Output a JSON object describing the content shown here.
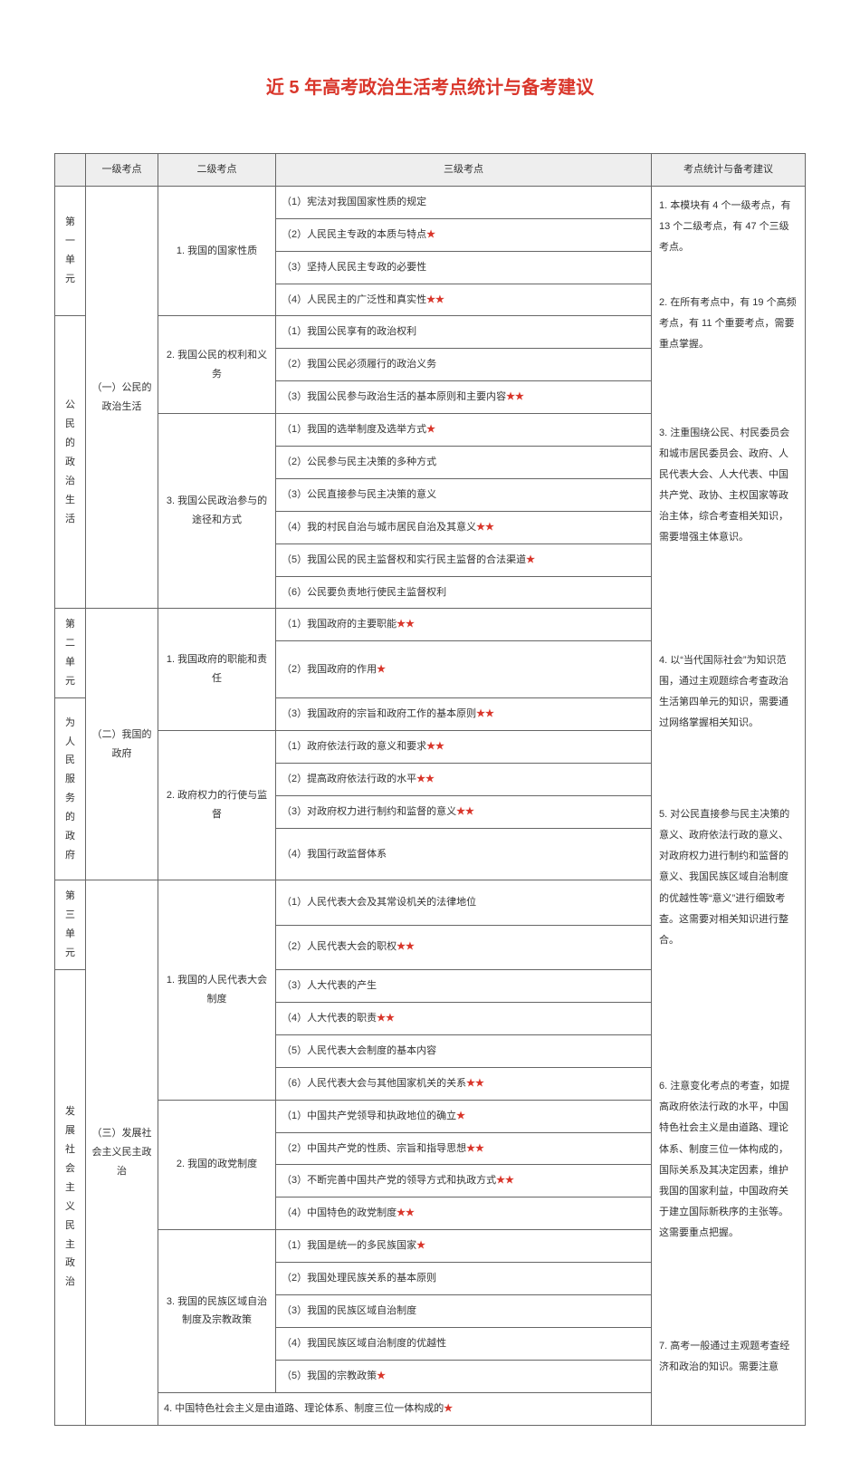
{
  "title": "近 5 年高考政治生活考点统计与备考建议",
  "headers": {
    "col0": "",
    "col1": "一级考点",
    "col2": "二级考点",
    "col3": "三级考点",
    "col4": "考点统计与备考建议"
  },
  "star": "★",
  "side": {
    "u1": "第一单元",
    "u2": "第二单元",
    "u3": "第三单元",
    "s1": "公民的政治生活",
    "s2": "为人民服务的政府",
    "s3": "发展社会主义民主政治"
  },
  "l1": {
    "a": "（一）公民的政治生活",
    "b": "（二）我国的政府",
    "c": "（三）发展社会主义民主政治"
  },
  "l2": {
    "a1": "1. 我国的国家性质",
    "a2": "2. 我国公民的权利和义务",
    "a3": "3. 我国公民政治参与的途径和方式",
    "b1": "1. 我国政府的职能和责任",
    "b2": "2. 政府权力的行使与监督",
    "c1": "1. 我国的人民代表大会制度",
    "c2": "2. 我国的政党制度",
    "c3": "3. 我国的民族区域自治制度及宗教政策",
    "c4": "4. 中国特色社会主义是由道路、理论体系、制度三位一体构成的"
  },
  "l3": {
    "a1_1": "（1）宪法对我国国家性质的规定",
    "a1_2": "（2）人民民主专政的本质与特点",
    "a1_3": "（3）坚持人民民主专政的必要性",
    "a1_4": "（4）人民民主的广泛性和真实性",
    "a2_1": "（1）我国公民享有的政治权利",
    "a2_2": "（2）我国公民必须履行的政治义务",
    "a2_3": "（3）我国公民参与政治生活的基本原则和主要内容",
    "a3_1": "（1）我国的选举制度及选举方式",
    "a3_2": "（2）公民参与民主决策的多种方式",
    "a3_3": "（3）公民直接参与民主决策的意义",
    "a3_4": "（4）我的村民自治与城市居民自治及其意义",
    "a3_5": "（5）我国公民的民主监督权和实行民主监督的合法渠道",
    "a3_6": "（6）公民要负责地行使民主监督权利",
    "b1_1": "（1）我国政府的主要职能",
    "b1_2": "（2）我国政府的作用",
    "b1_3": "（3）我国政府的宗旨和政府工作的基本原则",
    "b2_1": "（1）政府依法行政的意义和要求",
    "b2_2": "（2）提高政府依法行政的水平",
    "b2_3": "（3）对政府权力进行制约和监督的意义",
    "b2_4": "（4）我国行政监督体系",
    "c1_1": "（1）人民代表大会及其常设机关的法律地位",
    "c1_2": "（2）人民代表大会的职权",
    "c1_3": "（3）人大代表的产生",
    "c1_4": "（4）人大代表的职责",
    "c1_5": "（5）人民代表大会制度的基本内容",
    "c1_6": "（6）人民代表大会与其他国家机关的关系",
    "c2_1": "（1）中国共产党领导和执政地位的确立",
    "c2_2": "（2）中国共产党的性质、宗旨和指导思想",
    "c2_3": "（3）不断完善中国共产党的领导方式和执政方式",
    "c2_4": "（4）中国特色的政党制度",
    "c3_1": "（1）我国是统一的多民族国家",
    "c3_2": "（2）我国处理民族关系的基本原则",
    "c3_3": "（3）我国的民族区域自治制度",
    "c3_4": "（4）我国民族区域自治制度的优越性",
    "c3_5": "（5）我国的宗教政策"
  },
  "l3stars": {
    "a1_1": 0,
    "a1_2": 1,
    "a1_3": 0,
    "a1_4": 2,
    "a2_1": 0,
    "a2_2": 0,
    "a2_3": 2,
    "a3_1": 1,
    "a3_2": 0,
    "a3_3": 0,
    "a3_4": 2,
    "a3_5": 1,
    "a3_6": 0,
    "b1_1": 2,
    "b1_2": 1,
    "b1_3": 2,
    "b2_1": 2,
    "b2_2": 2,
    "b2_3": 2,
    "b2_4": 0,
    "c1_1": 0,
    "c1_2": 2,
    "c1_3": 0,
    "c1_4": 2,
    "c1_5": 0,
    "c1_6": 2,
    "c2_1": 1,
    "c2_2": 2,
    "c2_3": 2,
    "c2_4": 2,
    "c3_1": 1,
    "c3_2": 0,
    "c3_3": 0,
    "c3_4": 0,
    "c3_5": 1
  },
  "l2c4_stars": 1,
  "sugg": {
    "p1": "1. 本模块有 4 个一级考点，有 13 个二级考点，有 47 个三级考点。",
    "p2": "2. 在所有考点中，有 19 个高频考点，有 11 个重要考点，需要重点掌握。",
    "p3": "3. 注重围绕公民、村民委员会和城市居民委员会、政府、人民代表大会、人大代表、中国共产党、政协、主权国家等政治主体，综合考查相关知识，需要增强主体意识。",
    "p4": "4. 以“当代国际社会”为知识范围，通过主观题综合考查政治生活第四单元的知识，需要通过网络掌握相关知识。",
    "p5": "5. 对公民直接参与民主决策的意义、政府依法行政的意义、对政府权力进行制约和监督的意义、我国民族区域自治制度的优越性等“意义”进行细致考查。这需要对相关知识进行整合。",
    "p6": "6. 注意变化考点的考查，如提高政府依法行政的水平，中国特色社会主义是由道路、理论体系、制度三位一体构成的，国际关系及其决定因素，维护我国的国家利益，中国政府关于建立国际新秩序的主张等。这需要重点把握。",
    "p7": "7. 高考一般通过主观题考查经济和政治的知识。需要注意"
  },
  "colors": {
    "accent": "#d9362b",
    "border": "#666666",
    "header_bg": "#eeeeee",
    "text": "#333333",
    "bg": "#ffffff"
  }
}
